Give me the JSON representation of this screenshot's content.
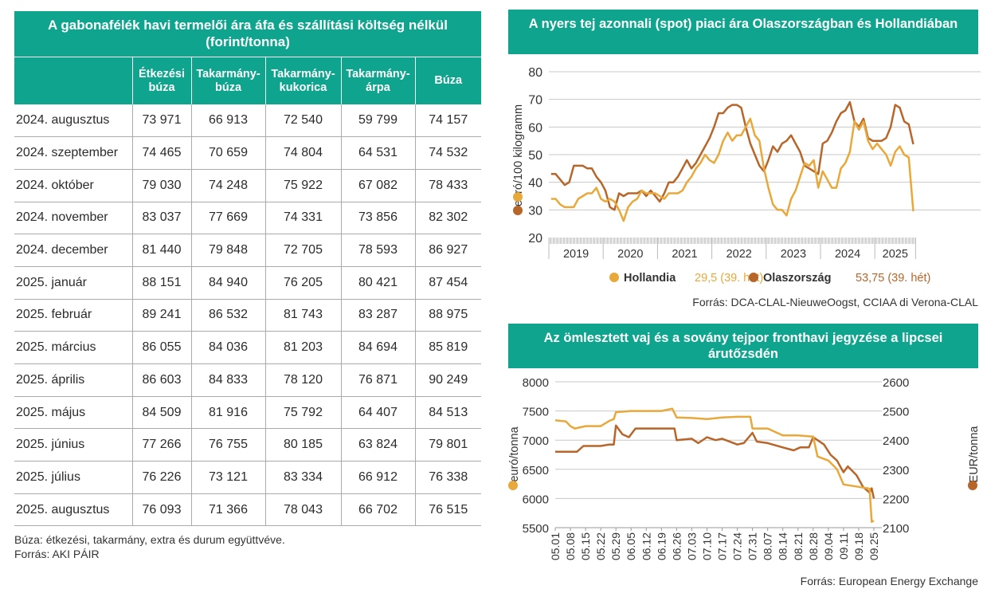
{
  "table": {
    "title": "A gabonafélék havi termelői ára áfa és szállítási költség nélkül (forint/tonna)",
    "columns": [
      "",
      "Étkezési búza",
      "Takarmány-búza",
      "Takarmány-kukorica",
      "Takarmány-árpa",
      "Búza"
    ],
    "rows": [
      [
        "2024. augusztus",
        "73 971",
        "66 913",
        "72 540",
        "59 799",
        "74 157"
      ],
      [
        "2024. szeptember",
        "74 465",
        "70 659",
        "74 804",
        "64 531",
        "74 532"
      ],
      [
        "2024. október",
        "79 030",
        "74 248",
        "75 922",
        "67 082",
        "78 433"
      ],
      [
        "2024. november",
        "83 037",
        "77 669",
        "74 331",
        "73 856",
        "82 302"
      ],
      [
        "2024. december",
        "81 440",
        "79 848",
        "72 705",
        "78 593",
        "86 927"
      ],
      [
        "2025. január",
        "88 151",
        "84 940",
        "76 205",
        "80 421",
        "87 454"
      ],
      [
        "2025. február",
        "89 241",
        "86 532",
        "81 743",
        "83 287",
        "88 975"
      ],
      [
        "2025. március",
        "86 055",
        "84 036",
        "81 203",
        "84 694",
        "85 819"
      ],
      [
        "2025. április",
        "86 603",
        "84 833",
        "78 120",
        "76 871",
        "90 249"
      ],
      [
        "2025. május",
        "84 509",
        "81 916",
        "75 792",
        "64 407",
        "84 513"
      ],
      [
        "2025. június",
        "77 266",
        "76 755",
        "80 185",
        "63 824",
        "79 801"
      ],
      [
        "2025. július",
        "76 226",
        "73 121",
        "83 334",
        "66 912",
        "76 338"
      ],
      [
        "2025. augusztus",
        "76 093",
        "71 366",
        "78 043",
        "66 702",
        "76 515"
      ]
    ],
    "note": "Búza: étkezési, takarmány, extra és durum együttvéve.",
    "source": "Forrás: AKI PÁIR"
  },
  "colors": {
    "header": "#0fa48e",
    "light": "#e8a83a",
    "dark": "#b8652a",
    "grid": "#c8c8c8"
  },
  "chart_data": [
    {
      "type": "line",
      "title": "A nyers tej azonnali (spot) piaci ára Olaszországban és Hollandiában",
      "ylabel": "euró/100 kilogramm",
      "ylim": [
        20,
        80
      ],
      "yticks": [
        20,
        30,
        40,
        50,
        60,
        70,
        80
      ],
      "xticks": [
        "2019",
        "2020",
        "2021",
        "2022",
        "2023",
        "2024",
        "2025"
      ],
      "grid": true,
      "legend_position": "bottom",
      "x": [
        "2019-01",
        "2019-02",
        "2019-03",
        "2019-04",
        "2019-05",
        "2019-06",
        "2019-07",
        "2019-08",
        "2019-09",
        "2019-10",
        "2019-11",
        "2019-12",
        "2020-01",
        "2020-02",
        "2020-03",
        "2020-04",
        "2020-05",
        "2020-06",
        "2020-07",
        "2020-08",
        "2020-09",
        "2020-10",
        "2020-11",
        "2020-12",
        "2021-01",
        "2021-02",
        "2021-03",
        "2021-04",
        "2021-05",
        "2021-06",
        "2021-07",
        "2021-08",
        "2021-09",
        "2021-10",
        "2021-11",
        "2021-12",
        "2022-01",
        "2022-02",
        "2022-03",
        "2022-04",
        "2022-05",
        "2022-06",
        "2022-07",
        "2022-08",
        "2022-09",
        "2022-10",
        "2022-11",
        "2022-12",
        "2023-01",
        "2023-02",
        "2023-03",
        "2023-04",
        "2023-05",
        "2023-06",
        "2023-07",
        "2023-08",
        "2023-09",
        "2023-10",
        "2023-11",
        "2023-12",
        "2024-01",
        "2024-02",
        "2024-03",
        "2024-04",
        "2024-05",
        "2024-06",
        "2024-07",
        "2024-08",
        "2024-09",
        "2024-10",
        "2024-11",
        "2024-12",
        "2025-01",
        "2025-02",
        "2025-03",
        "2025-04",
        "2025-05",
        "2025-06",
        "2025-07",
        "2025-08",
        "2025-09"
      ],
      "series": [
        {
          "name": "Hollandia",
          "label_value": "29,5 (39. hét)",
          "color": "#e8a83a",
          "values": [
            34,
            34,
            32,
            31,
            31,
            31,
            34,
            35,
            36,
            36,
            38,
            34,
            33,
            34,
            33,
            30,
            26,
            31,
            33,
            34,
            37,
            36,
            36,
            36,
            35,
            34,
            36,
            36,
            36,
            37,
            40,
            42,
            45,
            47,
            50,
            48,
            47,
            50,
            55,
            58,
            55,
            57,
            57,
            60,
            63,
            57,
            55,
            45,
            38,
            32,
            30,
            30,
            28,
            34,
            37,
            42,
            47,
            46,
            48,
            38,
            44,
            41,
            38,
            38,
            45,
            47,
            51,
            62,
            59,
            62,
            55,
            52,
            54,
            52,
            50,
            46,
            51,
            53,
            50,
            49,
            29.5
          ]
        },
        {
          "name": "Olaszország",
          "label_value": "53,75 (39. hét)",
          "color": "#b8652a",
          "values": [
            43,
            43,
            41,
            39,
            40,
            46,
            46,
            46,
            45,
            45,
            42,
            40,
            37,
            31,
            30,
            36,
            35,
            36,
            36,
            36,
            37,
            35,
            37,
            35,
            33,
            36,
            40,
            40,
            42,
            45,
            48,
            45,
            47,
            50,
            53,
            56,
            60,
            65,
            65,
            67,
            68,
            68,
            67,
            60,
            54,
            50,
            46,
            44,
            48,
            53,
            51,
            54,
            55,
            57,
            54,
            51,
            46,
            45,
            44,
            43,
            54,
            55,
            58,
            62,
            65,
            66,
            69,
            62,
            60,
            63,
            56,
            55,
            55,
            55,
            56,
            60,
            68,
            67,
            62,
            61,
            53.75
          ]
        }
      ],
      "source": "Forrás: DCA-CLAL-NieuweOogst, CCIAA di Verona-CLAL"
    },
    {
      "type": "line",
      "title": "Az ömlesztett vaj és a sovány tejpor fronthavi jegyzése a lipcsei árutőzsdén",
      "ylabel": "euró/tonna",
      "ylabel_right": "EUR/tonna",
      "ylim": [
        5500,
        8000
      ],
      "ylim_right": [
        2100,
        2600
      ],
      "yticks": [
        5500,
        6000,
        6500,
        7000,
        7500,
        8000
      ],
      "yticks_right": [
        2100,
        2200,
        2300,
        2400,
        2500,
        2600
      ],
      "xticks": [
        "05.01",
        "05.08",
        "05.15",
        "05.22",
        "05.29",
        "06.05",
        "06.12",
        "06.19",
        "06.26",
        "07.03",
        "07.10",
        "07.17",
        "07.24",
        "07.31",
        "08.07",
        "08.14",
        "08.21",
        "08.28",
        "09.04",
        "09.11",
        "09.18",
        "09.25"
      ],
      "grid": true,
      "series": [
        {
          "axis": "left",
          "color": "#e8a83a",
          "x": [
            "05.01",
            "05.06",
            "05.08",
            "05.10",
            "05.15",
            "05.22",
            "05.26",
            "05.28",
            "05.29",
            "06.05",
            "06.12",
            "06.19",
            "06.24",
            "06.26",
            "07.03",
            "07.10",
            "07.17",
            "07.24",
            "07.30",
            "07.31",
            "08.07",
            "08.14",
            "08.21",
            "08.28",
            "08.30",
            "09.04",
            "09.08",
            "09.11",
            "09.18",
            "09.23",
            "09.24",
            "09.25"
          ],
          "values": [
            7340,
            7320,
            7240,
            7200,
            7240,
            7240,
            7330,
            7360,
            7480,
            7500,
            7500,
            7500,
            7540,
            7390,
            7380,
            7360,
            7390,
            7400,
            7400,
            7200,
            7200,
            7080,
            7080,
            7060,
            6720,
            6650,
            6500,
            6240,
            6200,
            6170,
            5600,
            5620
          ]
        },
        {
          "axis": "right",
          "color": "#b8652a",
          "x": [
            "05.01",
            "05.08",
            "05.11",
            "05.14",
            "05.22",
            "05.26",
            "05.28",
            "05.29",
            "06.01",
            "06.04",
            "06.07",
            "06.12",
            "06.19",
            "06.25",
            "06.26",
            "07.03",
            "07.06",
            "07.10",
            "07.14",
            "07.17",
            "07.24",
            "07.27",
            "07.31",
            "08.02",
            "08.07",
            "08.14",
            "08.19",
            "08.22",
            "08.26",
            "08.28",
            "08.30",
            "09.02",
            "09.05",
            "09.08",
            "09.11",
            "09.13",
            "09.17",
            "09.20",
            "09.23",
            "09.24",
            "09.25"
          ],
          "values": [
            2360,
            2360,
            2360,
            2380,
            2380,
            2385,
            2385,
            2450,
            2420,
            2410,
            2440,
            2440,
            2440,
            2440,
            2400,
            2405,
            2390,
            2410,
            2400,
            2405,
            2385,
            2390,
            2425,
            2395,
            2390,
            2375,
            2365,
            2375,
            2375,
            2410,
            2400,
            2385,
            2350,
            2330,
            2290,
            2310,
            2280,
            2240,
            2220,
            2235,
            2200
          ]
        }
      ],
      "source": "Forrás: European Energy Exchange"
    }
  ]
}
